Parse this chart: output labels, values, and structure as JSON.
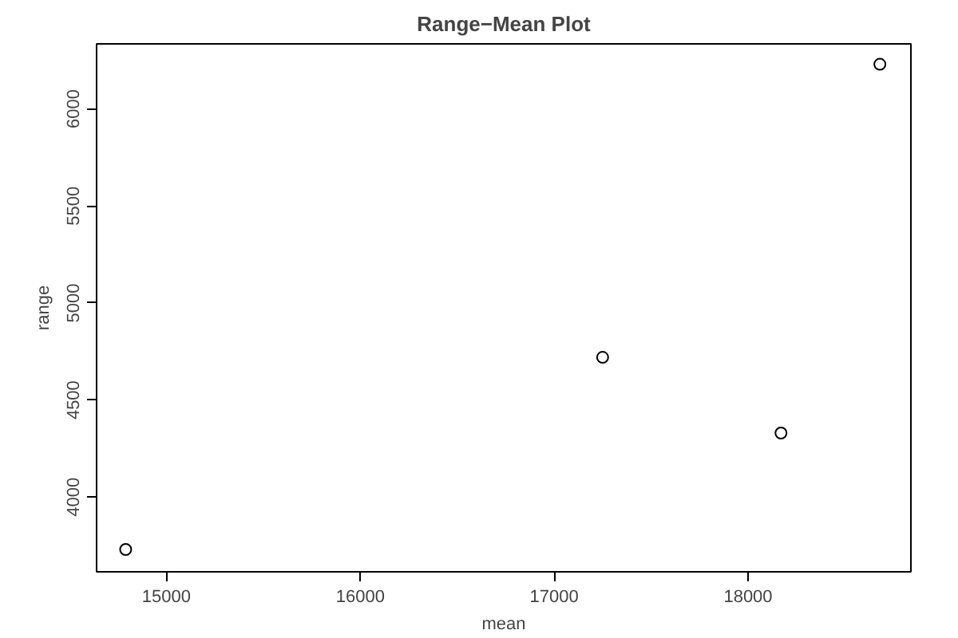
{
  "chart_data": {
    "type": "scatter",
    "title": "Range−Mean Plot",
    "xlabel": "mean",
    "ylabel": "range",
    "x": [
      14790,
      17250,
      18170,
      18680
    ],
    "series": [
      {
        "color": "#000000",
        "values": [
          3730,
          4720,
          4330,
          6230
        ]
      }
    ],
    "xlim": [
      14640,
      18840
    ],
    "ylim": [
      3615,
      6335
    ],
    "xticks": [
      15000,
      16000,
      17000,
      18000
    ],
    "yticks": [
      4000,
      4500,
      5000,
      5500,
      6000
    ],
    "marker": "circle"
  }
}
